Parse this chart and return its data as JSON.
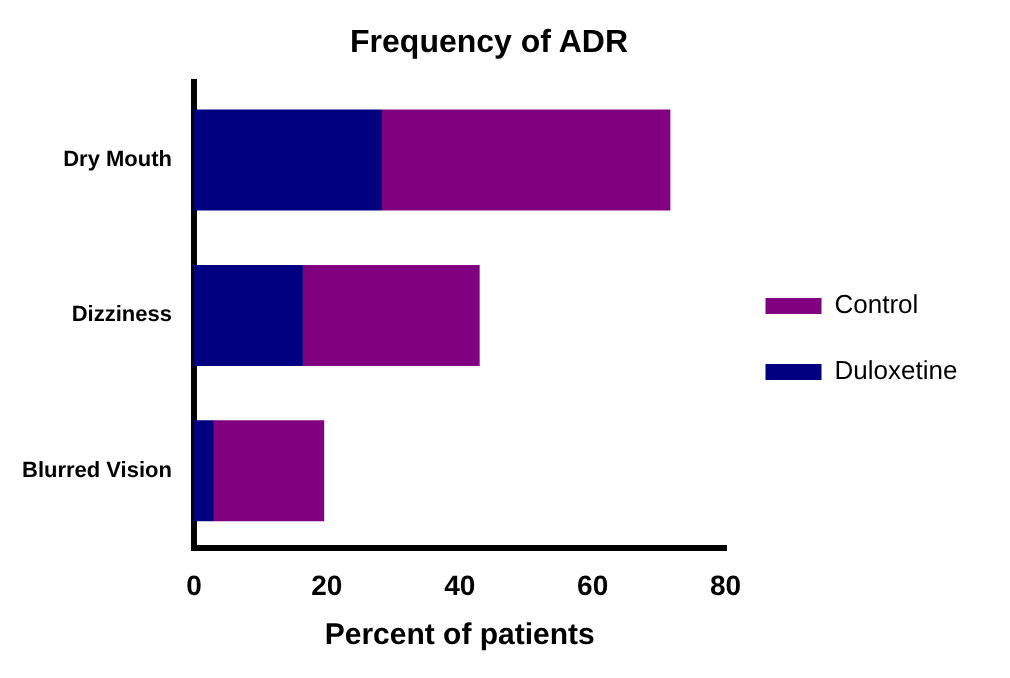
{
  "chart_data": {
    "type": "bar",
    "orientation": "horizontal",
    "stacked": true,
    "title": "Frequency of ADR",
    "xlabel": "Percent of patients",
    "categories": [
      "Dry Mouth",
      "Dizziness",
      "Blurred Vision"
    ],
    "series": [
      {
        "name": "Duloxetine",
        "color": "#000080",
        "values": [
          28.3,
          16.4,
          3.0
        ]
      },
      {
        "name": "Control",
        "color": "#800080",
        "values": [
          43.4,
          26.6,
          16.6
        ]
      }
    ],
    "xlim": [
      0,
      80
    ],
    "xticks": [
      0,
      20,
      40,
      60,
      80
    ],
    "grid": false,
    "legend": "right"
  }
}
